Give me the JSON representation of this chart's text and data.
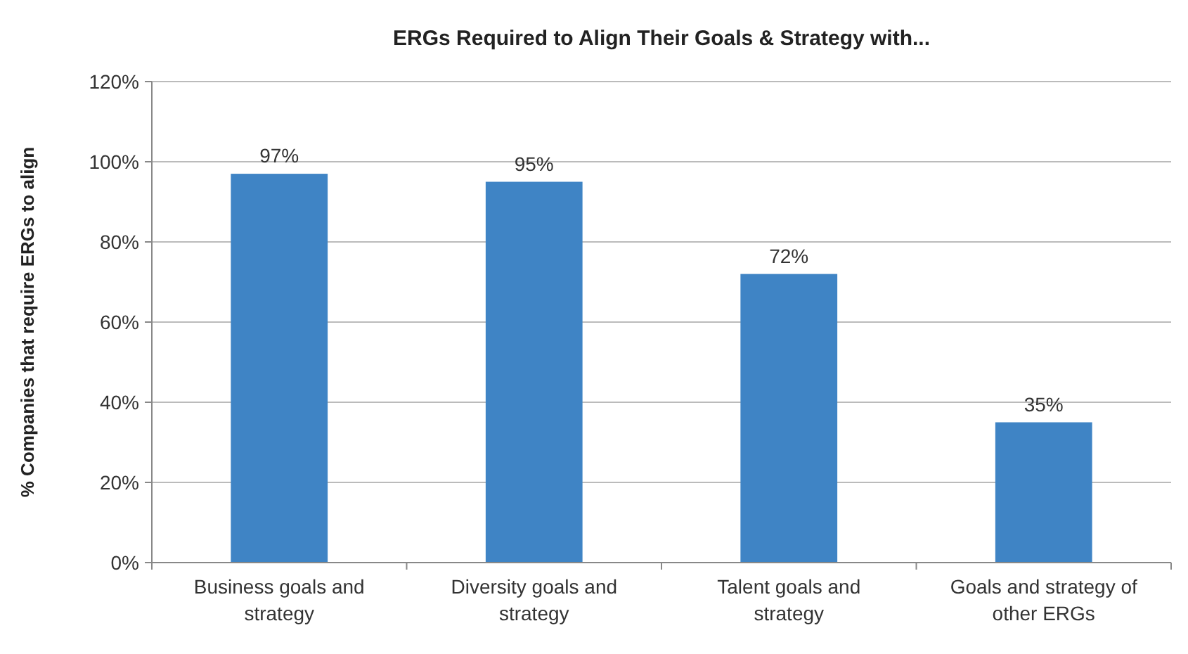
{
  "chart_data": {
    "type": "bar",
    "title": "ERGs Required to Align Their Goals & Strategy with...",
    "ylabel": "% Companies that require ERGs to align",
    "categories": [
      "Business goals and strategy",
      "Diversity goals and strategy",
      "Talent goals and strategy",
      "Goals and strategy of other ERGs"
    ],
    "values": [
      97,
      95,
      72,
      35
    ],
    "value_labels": [
      "97%",
      "95%",
      "72%",
      "35%"
    ],
    "color": "#3f84c5",
    "ylim": [
      0,
      120
    ],
    "yticks": [
      {
        "value": 0,
        "label": "0%"
      },
      {
        "value": 20,
        "label": "20%"
      },
      {
        "value": 40,
        "label": "40%"
      },
      {
        "value": 60,
        "label": "60%"
      },
      {
        "value": 80,
        "label": "80%"
      },
      {
        "value": 100,
        "label": "100%"
      },
      {
        "value": 120,
        "label": "120%"
      }
    ],
    "grid": "y"
  }
}
